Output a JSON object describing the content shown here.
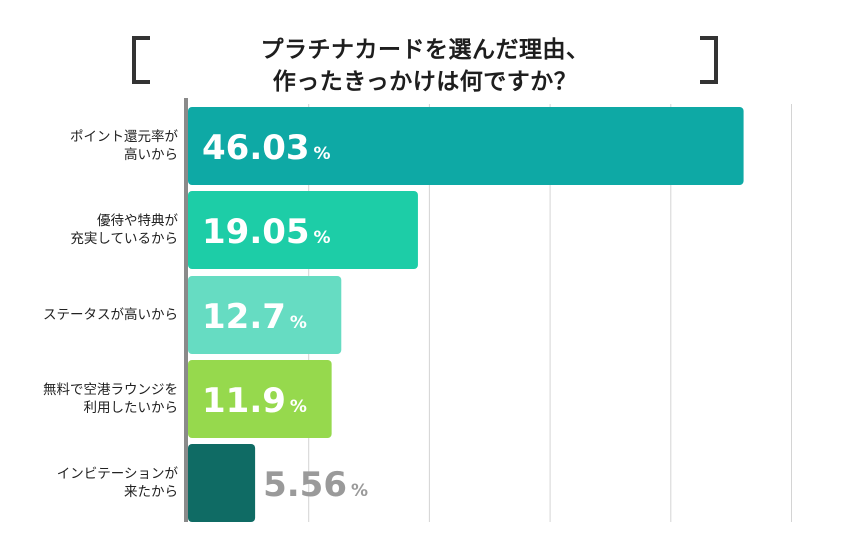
{
  "title": {
    "line1": "プラチナカードを選んだ理由、",
    "line2": "作ったきっかけは何ですか？"
  },
  "chart_data": {
    "type": "bar",
    "orientation": "horizontal",
    "categories": [
      [
        "ポイント還元率が",
        "高いから"
      ],
      [
        "優待や特典が",
        "充実しているから"
      ],
      [
        "ステータスが高いから"
      ],
      [
        "無料で空港ラウンジを",
        "利用したいから"
      ],
      [
        "インビテーションが",
        "来たから"
      ]
    ],
    "values": [
      46.03,
      19.05,
      12.7,
      11.9,
      5.56
    ],
    "value_labels": [
      "46.03",
      "19.05",
      "12.7",
      "11.9",
      "5.56"
    ],
    "unit": "%",
    "colors": [
      "#0ea9a5",
      "#1dcda7",
      "#66dcc2",
      "#96d94d",
      "#0f6b64"
    ],
    "label_colors": [
      "#ffffff",
      "#ffffff",
      "#ffffff",
      "#ffffff",
      "#9a9a9a"
    ],
    "xlim": [
      0,
      50
    ],
    "gridlines_at": [
      10,
      20,
      30,
      40,
      50
    ],
    "grid": true
  }
}
